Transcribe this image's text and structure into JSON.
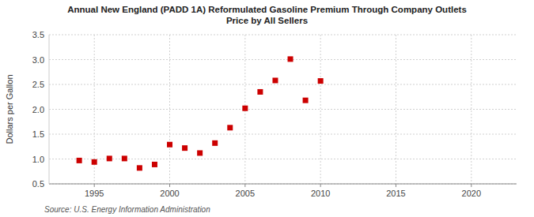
{
  "chart_data": {
    "type": "scatter",
    "title": "Annual New England (PADD 1A) Reformulated Gasoline Premium Through Company Outlets\nPrice by All Sellers",
    "ylabel": "Dollars per Gallon",
    "source": "Source: U.S. Energy Information Administration",
    "x": [
      1994,
      1995,
      1996,
      1997,
      1998,
      1999,
      2000,
      2001,
      2002,
      2003,
      2004,
      2005,
      2006,
      2007,
      2008,
      2009,
      2010
    ],
    "values": [
      0.97,
      0.94,
      1.01,
      1.01,
      0.82,
      0.89,
      1.29,
      1.22,
      1.12,
      1.32,
      1.63,
      2.02,
      2.35,
      2.58,
      3.01,
      2.18,
      2.57
    ],
    "color": "#cc0000",
    "marker": "square",
    "xlim": [
      1992,
      2023
    ],
    "ylim": [
      0.5,
      3.5
    ],
    "xticks": [
      1995,
      2000,
      2005,
      2010,
      2015,
      2020
    ],
    "yticks": [
      0.5,
      {
        "value": 1,
        "label": "1.0"
      },
      1.5,
      {
        "value": 2,
        "label": "2.0"
      },
      2.5,
      {
        "value": 3,
        "label": "3.0"
      },
      3.5
    ],
    "grid": true
  }
}
